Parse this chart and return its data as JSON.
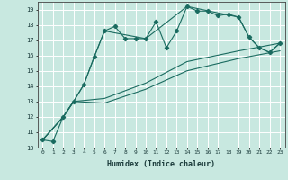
{
  "xlabel": "Humidex (Indice chaleur)",
  "bg_color": "#c8e8e0",
  "grid_color": "#ffffff",
  "line_color": "#1a6b60",
  "xlim": [
    -0.5,
    23.5
  ],
  "ylim": [
    10,
    19.5
  ],
  "xticks": [
    0,
    1,
    2,
    3,
    4,
    5,
    6,
    7,
    8,
    9,
    10,
    11,
    12,
    13,
    14,
    15,
    16,
    17,
    18,
    19,
    20,
    21,
    22,
    23
  ],
  "yticks": [
    10,
    11,
    12,
    13,
    14,
    15,
    16,
    17,
    18,
    19
  ],
  "series_main": {
    "x": [
      0,
      1,
      2,
      3,
      4,
      5,
      6,
      7,
      8,
      9,
      10,
      11,
      12,
      13,
      14,
      15,
      16,
      17,
      18,
      19,
      20,
      21,
      22,
      23
    ],
    "y": [
      10.5,
      10.4,
      12.0,
      13.0,
      14.1,
      15.9,
      17.6,
      17.9,
      17.1,
      17.1,
      17.1,
      18.2,
      16.5,
      17.6,
      19.2,
      18.9,
      18.9,
      18.6,
      18.7,
      18.5,
      17.2,
      16.5,
      16.2,
      16.8
    ]
  },
  "series_smooth": [
    {
      "x": [
        0,
        2,
        3,
        4,
        5,
        6,
        10,
        14,
        19,
        20,
        21,
        22,
        23
      ],
      "y": [
        10.5,
        12.0,
        13.0,
        14.1,
        15.9,
        17.6,
        17.1,
        19.2,
        18.5,
        17.2,
        16.5,
        16.2,
        16.8
      ]
    },
    {
      "x": [
        0,
        2,
        3,
        6,
        10,
        14,
        19,
        23
      ],
      "y": [
        10.5,
        12.0,
        13.0,
        13.2,
        14.2,
        15.6,
        16.3,
        16.8
      ]
    },
    {
      "x": [
        0,
        2,
        3,
        6,
        10,
        14,
        19,
        23
      ],
      "y": [
        10.5,
        12.0,
        13.0,
        12.9,
        13.8,
        15.0,
        15.8,
        16.3
      ]
    }
  ]
}
